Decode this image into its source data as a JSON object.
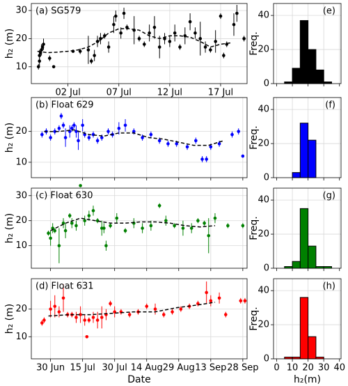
{
  "chart_data": [
    {
      "type": "scatter",
      "label": "(a)  SG579",
      "ylabel": "h₂ (m)",
      "color": "#000000",
      "grid": true,
      "show_xtick_labels": true,
      "xlim": [
        179.4,
        200.6
      ],
      "ylim": [
        4,
        32.5
      ],
      "xticks": [
        {
          "value": 183,
          "label": "02 Jul"
        },
        {
          "value": 188,
          "label": "07 Jul"
        },
        {
          "value": 193,
          "label": "12 Jul"
        },
        {
          "value": 198,
          "label": "17 Jul"
        }
      ],
      "yticks": [
        10,
        20,
        30
      ],
      "x": [
        180.1,
        180.2,
        180.2,
        180.3,
        180.4,
        180.5,
        180.6,
        181.2,
        181.6,
        183.5,
        184.2,
        185.0,
        185.3,
        185.6,
        185.9,
        186.2,
        186.6,
        187.0,
        187.5,
        187.7,
        188.2,
        188.5,
        188.8,
        189.5,
        190.0,
        190.5,
        191.0,
        191.5,
        192.0,
        192.5,
        193.0,
        193.5,
        194.0,
        194.5,
        195.0,
        195.5,
        196.0,
        196.5,
        197.0,
        197.5,
        198.0,
        198.3,
        198.6,
        199.3,
        199.6,
        200.3
      ],
      "values": [
        10,
        12,
        14,
        15,
        16,
        17,
        18,
        13,
        10,
        15.5,
        15.5,
        16,
        12,
        14,
        19,
        20,
        21,
        17,
        25,
        28,
        22,
        29,
        24,
        23,
        20,
        18,
        22,
        24,
        17,
        20,
        19,
        22,
        17,
        21,
        26,
        22,
        20,
        17,
        16,
        19,
        28,
        14,
        18,
        25,
        29,
        20
      ],
      "errors": [
        1,
        2,
        2,
        1.5,
        2,
        1,
        2,
        1,
        0.5,
        0.5,
        1,
        5,
        1,
        2,
        2,
        2,
        1,
        2,
        3,
        2,
        2,
        2,
        1,
        5,
        1,
        1,
        3,
        4,
        4,
        2,
        2,
        3,
        1,
        3,
        3,
        2,
        6,
        2,
        1,
        4,
        1,
        1,
        1,
        4,
        3,
        1
      ],
      "trend_x": [
        180,
        181,
        182,
        183,
        184,
        185,
        186,
        187,
        188,
        189,
        190,
        191,
        192,
        193,
        194,
        195,
        196,
        197,
        198,
        199
      ],
      "trend": [
        15.5,
        15,
        15.2,
        15.5,
        16,
        17,
        19,
        22,
        23.5,
        23.5,
        23,
        21,
        20,
        21,
        21,
        20.5,
        19,
        17,
        18,
        18.5
      ]
    },
    {
      "type": "scatter",
      "label": "(b)  Float 629",
      "ylabel": "h₂ (m)",
      "color": "#0000ff",
      "grid": true,
      "show_xtick_labels": false,
      "xlim": [
        172,
        273
      ],
      "ylim": [
        5,
        31
      ],
      "xticks": [
        181,
        196,
        211,
        226,
        241,
        256,
        271
      ],
      "yticks": [
        10,
        20
      ],
      "x": [
        177,
        179,
        181,
        183,
        185,
        186,
        187,
        188,
        190,
        191,
        192,
        193,
        194,
        196,
        197,
        199,
        201,
        203,
        205,
        208,
        210,
        213,
        216,
        220,
        224,
        228,
        232,
        236,
        240,
        245,
        249,
        252,
        254,
        256,
        260,
        266,
        269,
        271
      ],
      "values": [
        19,
        20,
        18,
        20,
        21,
        25,
        22,
        18,
        20,
        21,
        22,
        20,
        17,
        22,
        19,
        18,
        19,
        17,
        18,
        20,
        19,
        21,
        22,
        20,
        18,
        19,
        17,
        16,
        16,
        15,
        17,
        11,
        11,
        15,
        16,
        19,
        20,
        12
      ],
      "errors": [
        1,
        1,
        1,
        1,
        1,
        1,
        1,
        3,
        2,
        1,
        1,
        2,
        3,
        2,
        1,
        1,
        1,
        1,
        1,
        1,
        1,
        2,
        2,
        1,
        1,
        1,
        1,
        1,
        1,
        1,
        1,
        1,
        1,
        1,
        1,
        1,
        1,
        0.5
      ],
      "trend_x": [
        178,
        185,
        192,
        199,
        206,
        213,
        220,
        227,
        234,
        241,
        248,
        255,
        262
      ],
      "trend": [
        20,
        20,
        20.5,
        19,
        18.5,
        19.5,
        19.5,
        18,
        17.5,
        16.5,
        15.5,
        15.5,
        17
      ]
    },
    {
      "type": "scatter",
      "label": "(c)  Float 630",
      "ylabel": "h₂ (m)",
      "color": "#008000",
      "grid": true,
      "show_xtick_labels": false,
      "xlim": [
        172,
        273
      ],
      "ylim": [
        1,
        33
      ],
      "xticks": [
        181,
        196,
        211,
        226,
        241,
        256,
        271
      ],
      "yticks": [
        10,
        20,
        30
      ],
      "x": [
        180,
        181,
        182,
        183,
        185,
        187,
        188,
        190,
        191,
        193,
        195,
        197,
        199,
        201,
        203,
        205,
        206,
        207,
        209,
        212,
        216,
        220,
        224,
        228,
        232,
        235,
        239,
        243,
        247,
        250,
        253,
        255,
        258,
        264,
        271
      ],
      "values": [
        15,
        13,
        17,
        16,
        10,
        19,
        16,
        22,
        19,
        18,
        34,
        20,
        22,
        24,
        20,
        17,
        17,
        10,
        18,
        21,
        16,
        19,
        17,
        18,
        26,
        20,
        18,
        17,
        17,
        20,
        19,
        14,
        21,
        18,
        18
      ],
      "errors": [
        1,
        3,
        2,
        1,
        7,
        2,
        3,
        1,
        2,
        2,
        0.5,
        2,
        2,
        2,
        1,
        3,
        2,
        2,
        1,
        2,
        1,
        2,
        2,
        2,
        1,
        2,
        1,
        3,
        2,
        1,
        1,
        7,
        2,
        1,
        1
      ],
      "trend_x": [
        181,
        188,
        195,
        202,
        209,
        216,
        223,
        230,
        237,
        244,
        251,
        258
      ],
      "trend": [
        16,
        19,
        21,
        20,
        19,
        19,
        19.5,
        19.5,
        19,
        18,
        17.5,
        18
      ]
    },
    {
      "type": "scatter",
      "label": "(d)  Float 631",
      "ylabel": "h₂ (m)",
      "xlabel": "Date",
      "color": "#ff0000",
      "grid": true,
      "show_xtick_labels": true,
      "xlim": [
        172,
        273
      ],
      "ylim": [
        2,
        31
      ],
      "xticks": [
        {
          "value": 181,
          "label": "30 Jun"
        },
        {
          "value": 196,
          "label": "15 Jul"
        },
        {
          "value": 211,
          "label": "30 Jul"
        },
        {
          "value": 226,
          "label": "14 Aug"
        },
        {
          "value": 241,
          "label": "29 Aug"
        },
        {
          "value": 256,
          "label": "13 Sep"
        },
        {
          "value": 271,
          "label": "28 Sep"
        }
      ],
      "yticks": [
        10,
        20
      ],
      "x": [
        177,
        178,
        181,
        183,
        185,
        187,
        189,
        191,
        193,
        195,
        197,
        198,
        199,
        201,
        203,
        205,
        207,
        209,
        211,
        214,
        218,
        222,
        226,
        230,
        234,
        238,
        242,
        246,
        250,
        254,
        256,
        260,
        263,
        270,
        272
      ],
      "values": [
        15,
        16,
        20,
        21,
        19,
        24,
        18,
        18,
        17,
        18,
        16,
        10,
        16,
        17,
        16,
        17,
        18,
        22,
        19,
        19,
        18,
        19,
        21,
        20,
        18,
        19,
        20,
        21,
        22,
        26,
        23,
        24,
        18,
        23,
        23
      ],
      "errors": [
        1,
        1,
        3,
        4,
        2,
        5,
        1,
        1,
        2,
        3,
        2,
        0.5,
        1,
        2,
        3,
        4,
        2,
        1,
        2,
        1,
        1,
        1,
        1,
        2,
        1,
        1,
        1,
        1,
        1,
        4,
        2,
        2,
        1,
        1,
        1
      ],
      "trend_x": [
        180,
        190,
        200,
        210,
        220,
        230,
        240,
        250,
        258
      ],
      "trend": [
        17.5,
        18,
        18,
        18.5,
        19,
        19,
        20.5,
        21.5,
        22.5
      ]
    },
    {
      "type": "histogram",
      "label": "(e)",
      "ylabel": "Freq.",
      "color": "#000000",
      "grid": true,
      "show_xtick_labels": false,
      "xlim": [
        -2,
        41
      ],
      "ylim": [
        0,
        47
      ],
      "xticks": [
        0,
        10,
        20,
        30,
        40
      ],
      "yticks": [
        0,
        20,
        40
      ],
      "bins": [
        5,
        10,
        15,
        20,
        25,
        30,
        35
      ],
      "counts": [
        1,
        9,
        37,
        20,
        8,
        1
      ]
    },
    {
      "type": "histogram",
      "label": "(f)",
      "ylabel": "Freq.",
      "color": "#0000ff",
      "grid": true,
      "show_xtick_labels": false,
      "xlim": [
        -2,
        41
      ],
      "ylim": [
        0,
        47
      ],
      "xticks": [
        0,
        10,
        20,
        30,
        40
      ],
      "yticks": [
        0,
        20,
        40
      ],
      "bins": [
        5,
        10,
        15,
        20,
        25,
        30,
        35
      ],
      "counts": [
        0,
        3,
        32,
        22,
        0,
        0
      ]
    },
    {
      "type": "histogram",
      "label": "(g)",
      "ylabel": "Freq.",
      "color": "#008000",
      "grid": true,
      "show_xtick_labels": false,
      "xlim": [
        -2,
        41
      ],
      "ylim": [
        0,
        47
      ],
      "xticks": [
        0,
        10,
        20,
        30,
        40
      ],
      "yticks": [
        0,
        20,
        40
      ],
      "bins": [
        5,
        10,
        15,
        20,
        25,
        30,
        35
      ],
      "counts": [
        1,
        4,
        35,
        13,
        1,
        1
      ]
    },
    {
      "type": "histogram",
      "label": "(h)",
      "ylabel": "Freq.",
      "xlabel": "h₂(m)",
      "color": "#ff0000",
      "grid": true,
      "show_xtick_labels": true,
      "xlim": [
        -2,
        41
      ],
      "ylim": [
        0,
        47
      ],
      "xticks": [
        0,
        10,
        20,
        30,
        40
      ],
      "yticks": [
        0,
        20,
        40
      ],
      "bins": [
        5,
        10,
        15,
        20,
        25,
        30,
        35
      ],
      "counts": [
        1,
        1,
        36,
        13,
        1,
        0
      ]
    }
  ]
}
